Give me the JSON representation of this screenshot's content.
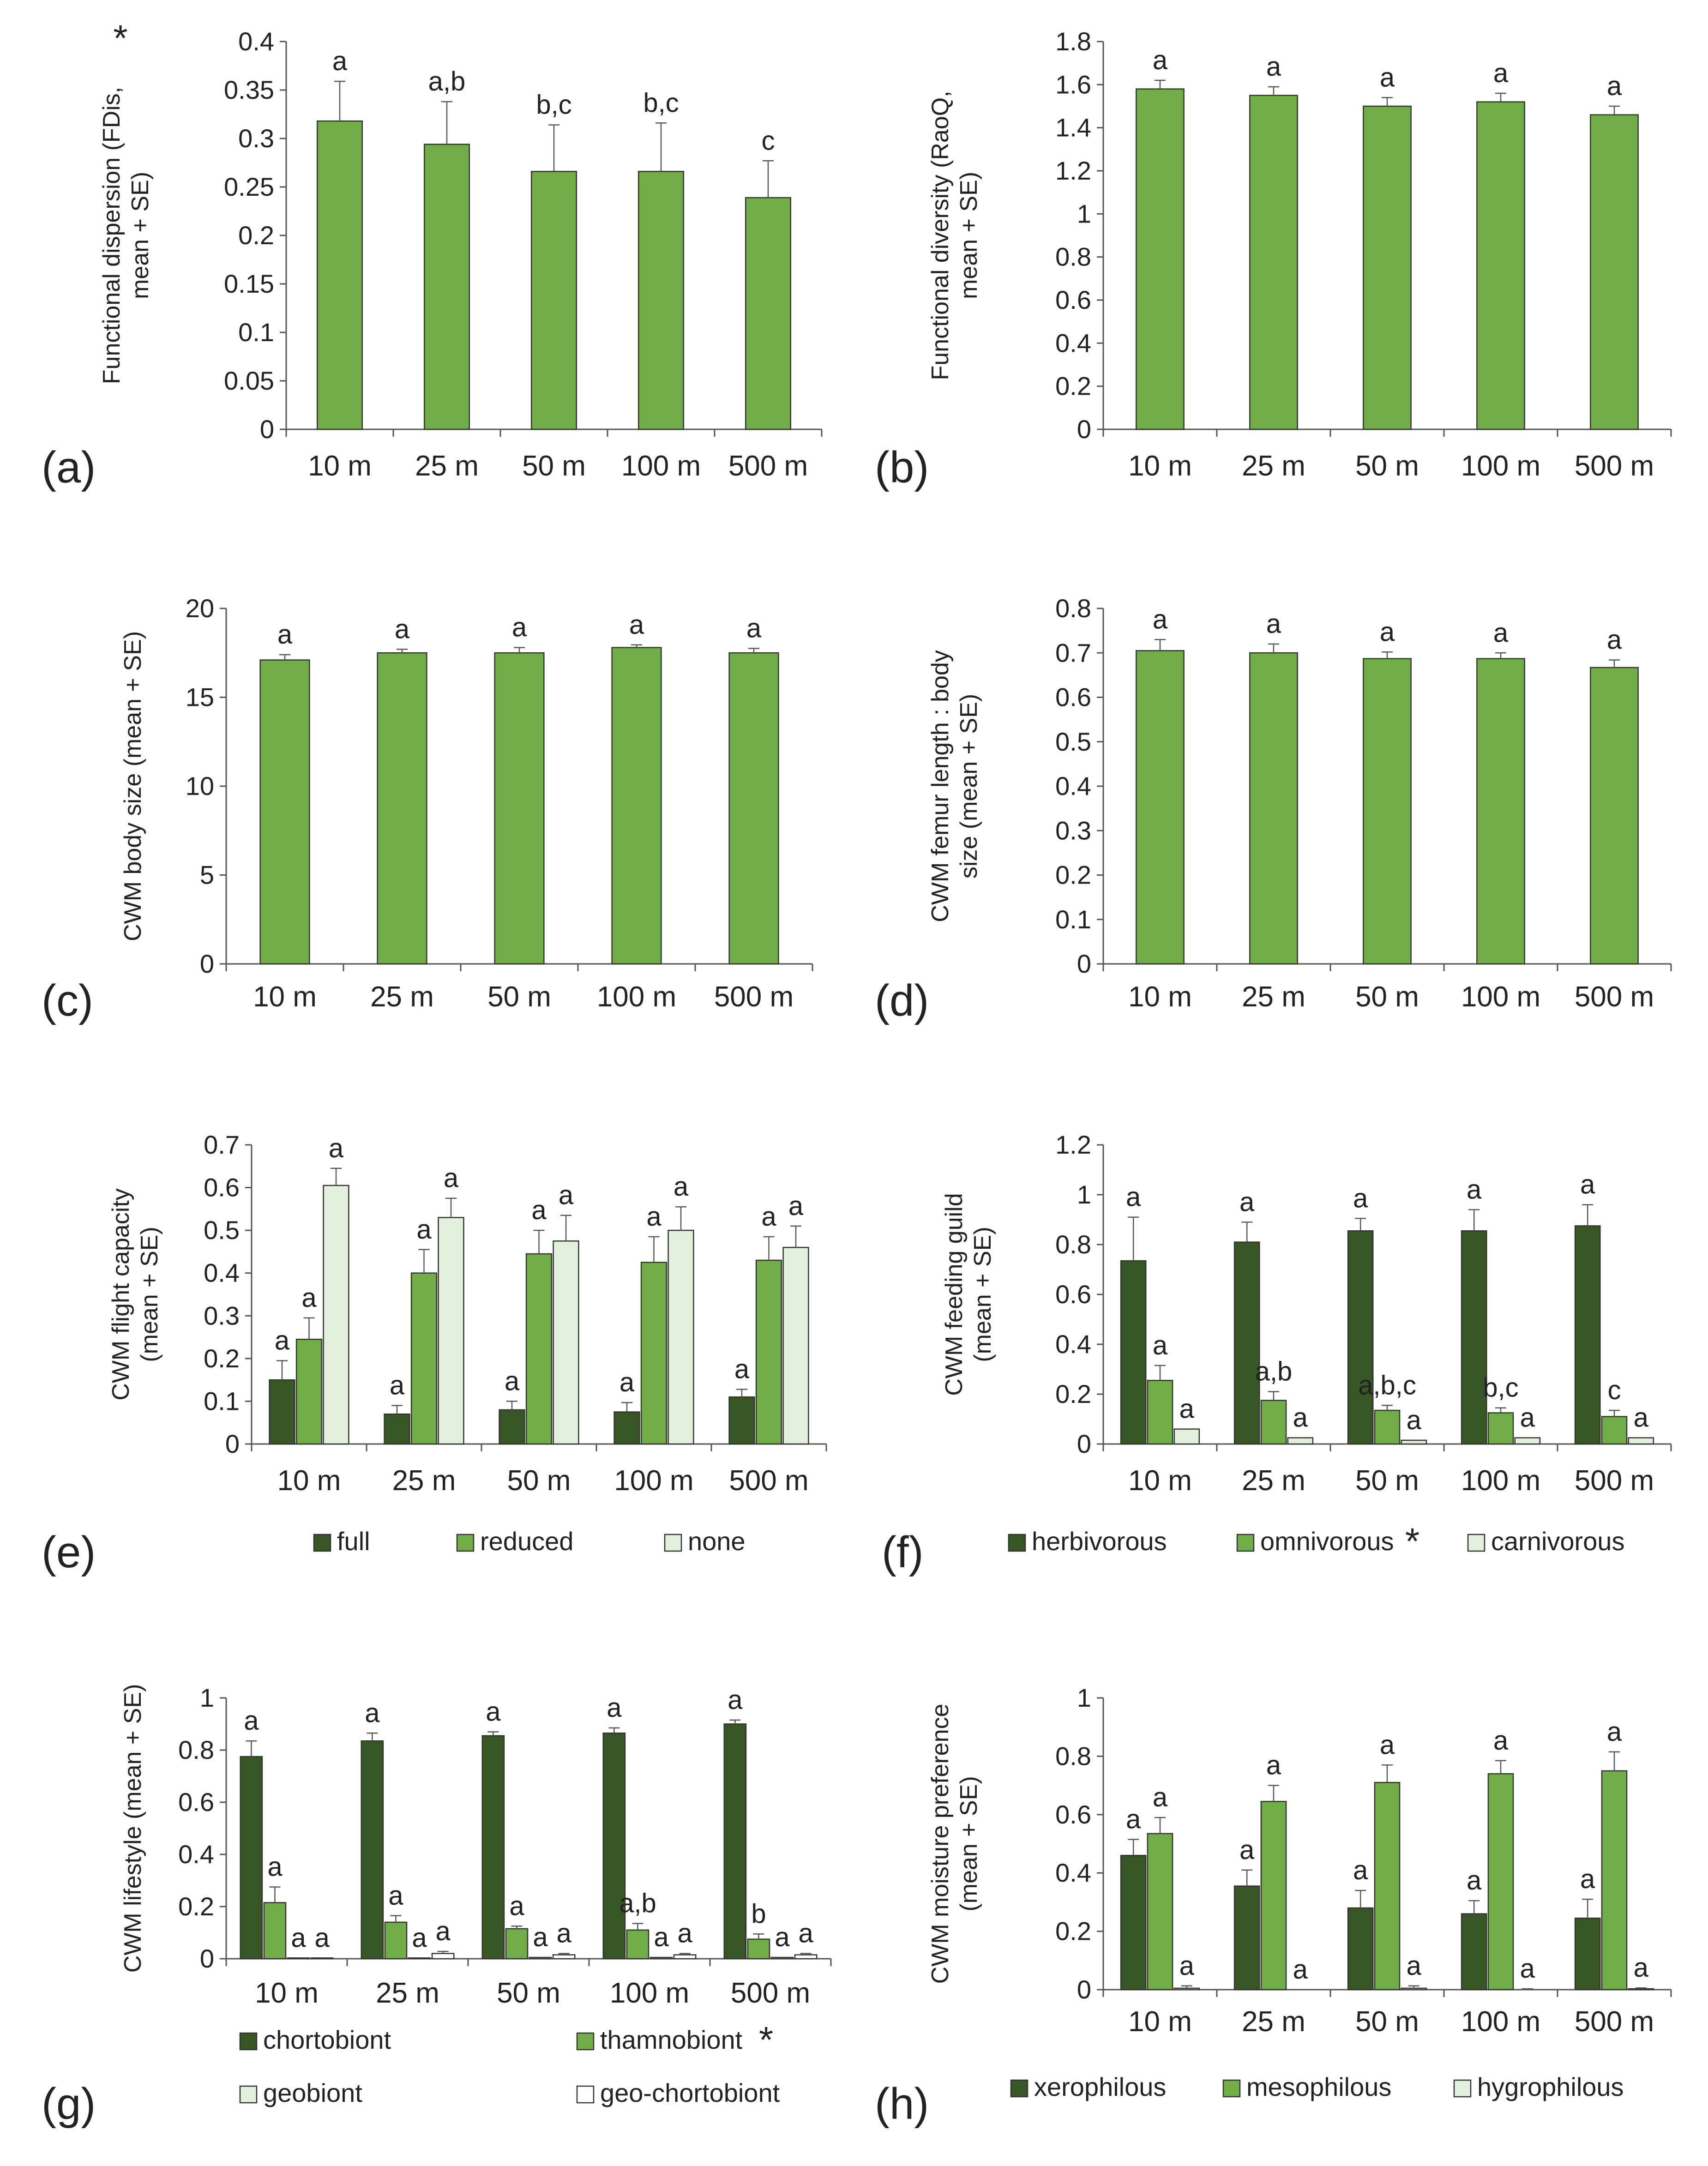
{
  "categories": [
    "10 m",
    "25 m",
    "50 m",
    "100 m",
    "500 m"
  ],
  "colors": {
    "dark": "#375623",
    "mid": "#70ad47",
    "light": "#e2efda",
    "white": "#ffffff",
    "single": "#70ad47"
  },
  "chart_data": [
    {
      "id": "a",
      "panel_label": "(a)",
      "type": "bar",
      "ylabel_lines": [
        "Functional dispersion (FDis,",
        "mean + SE)"
      ],
      "ylabel_star": "*",
      "ylim": [
        0,
        0.4
      ],
      "yticks": [
        0,
        0.05,
        0.1,
        0.15,
        0.2,
        0.25,
        0.3,
        0.35,
        0.4
      ],
      "ytick_labels": [
        "0",
        "0.05",
        "0.1",
        "0.15",
        "0.2",
        "0.25",
        "0.3",
        "0.35",
        "0.4"
      ],
      "categories": [
        "10 m",
        "25 m",
        "50 m",
        "100 m",
        "500 m"
      ],
      "series": [
        {
          "name": "",
          "color": "single",
          "values": [
            0.318,
            0.294,
            0.266,
            0.266,
            0.239
          ],
          "se": [
            0.041,
            0.044,
            0.048,
            0.05,
            0.038
          ],
          "letters": [
            "a",
            "a,b",
            "b,c",
            "b,c",
            "c"
          ]
        }
      ]
    },
    {
      "id": "b",
      "panel_label": "(b)",
      "type": "bar",
      "ylabel_lines": [
        "Functional diversity (RaoQ,",
        "mean + SE)"
      ],
      "ylim": [
        0,
        1.8
      ],
      "yticks": [
        0,
        0.2,
        0.4,
        0.6,
        0.8,
        1,
        1.2,
        1.4,
        1.6,
        1.8
      ],
      "ytick_labels": [
        "0",
        "0.2",
        "0.4",
        "0.6",
        "0.8",
        "1",
        "1.2",
        "1.4",
        "1.6",
        "1.8"
      ],
      "categories": [
        "10 m",
        "25 m",
        "50 m",
        "100 m",
        "500 m"
      ],
      "series": [
        {
          "name": "",
          "color": "single",
          "values": [
            1.58,
            1.55,
            1.5,
            1.52,
            1.46
          ],
          "se": [
            0.04,
            0.04,
            0.04,
            0.04,
            0.04
          ],
          "letters": [
            "a",
            "a",
            "a",
            "a",
            "a"
          ]
        }
      ]
    },
    {
      "id": "c",
      "panel_label": "(c)",
      "type": "bar",
      "ylabel_lines": [
        "CWM body size (mean + SE)"
      ],
      "ylim": [
        0,
        20
      ],
      "yticks": [
        0,
        5,
        10,
        15,
        20
      ],
      "ytick_labels": [
        "0",
        "5",
        "10",
        "15",
        "20"
      ],
      "categories": [
        "10 m",
        "25 m",
        "50 m",
        "100 m",
        "500 m"
      ],
      "series": [
        {
          "name": "",
          "color": "single",
          "values": [
            17.1,
            17.5,
            17.5,
            17.8,
            17.5
          ],
          "se": [
            0.3,
            0.2,
            0.3,
            0.15,
            0.25
          ],
          "letters": [
            "a",
            "a",
            "a",
            "a",
            "a"
          ]
        }
      ]
    },
    {
      "id": "d",
      "panel_label": "(d)",
      "type": "bar",
      "ylabel_lines": [
        "CWM femur length : body",
        "size (mean + SE)"
      ],
      "ylim": [
        0,
        0.8
      ],
      "yticks": [
        0,
        0.1,
        0.2,
        0.3,
        0.4,
        0.5,
        0.6,
        0.7,
        0.8
      ],
      "ytick_labels": [
        "0",
        "0.1",
        "0.2",
        "0.3",
        "0.4",
        "0.5",
        "0.6",
        "0.7",
        "0.8"
      ],
      "categories": [
        "10 m",
        "25 m",
        "50 m",
        "100 m",
        "500 m"
      ],
      "series": [
        {
          "name": "",
          "color": "single",
          "values": [
            0.705,
            0.7,
            0.687,
            0.687,
            0.667
          ],
          "se": [
            0.025,
            0.02,
            0.015,
            0.013,
            0.017
          ],
          "letters": [
            "a",
            "a",
            "a",
            "a",
            "a"
          ]
        }
      ]
    },
    {
      "id": "e",
      "panel_label": "(e)",
      "type": "bar",
      "ylabel_lines": [
        "CWM flight capacity",
        "(mean + SE)"
      ],
      "ylim": [
        0,
        0.7
      ],
      "yticks": [
        0,
        0.1,
        0.2,
        0.3,
        0.4,
        0.5,
        0.6,
        0.7
      ],
      "ytick_labels": [
        "0",
        "0.1",
        "0.2",
        "0.3",
        "0.4",
        "0.5",
        "0.6",
        "0.7"
      ],
      "categories": [
        "10 m",
        "25 m",
        "50 m",
        "100 m",
        "500 m"
      ],
      "series": [
        {
          "name": "full",
          "color": "dark",
          "values": [
            0.15,
            0.07,
            0.08,
            0.075,
            0.11
          ],
          "se": [
            0.045,
            0.02,
            0.02,
            0.022,
            0.018
          ],
          "letters": [
            "a",
            "a",
            "a",
            "a",
            "a"
          ]
        },
        {
          "name": "reduced",
          "color": "mid",
          "values": [
            0.245,
            0.4,
            0.445,
            0.425,
            0.43
          ],
          "se": [
            0.05,
            0.055,
            0.055,
            0.06,
            0.055
          ],
          "letters": [
            "a",
            "a",
            "a",
            "a",
            "a"
          ]
        },
        {
          "name": "none",
          "color": "light",
          "values": [
            0.605,
            0.53,
            0.475,
            0.5,
            0.46
          ],
          "se": [
            0.04,
            0.045,
            0.06,
            0.055,
            0.05
          ],
          "letters": [
            "a",
            "a",
            "a",
            "a",
            "a"
          ]
        }
      ],
      "legend": {
        "placement": "bottom",
        "items": [
          {
            "label": "full",
            "color": "dark"
          },
          {
            "label": "reduced",
            "color": "mid"
          },
          {
            "label": "none",
            "color": "light"
          }
        ]
      }
    },
    {
      "id": "f",
      "panel_label": "(f)",
      "type": "bar",
      "ylabel_lines": [
        "CWM feeding guild",
        "(mean + SE)"
      ],
      "ylim": [
        0,
        1.2
      ],
      "yticks": [
        0,
        0.2,
        0.4,
        0.6,
        0.8,
        1,
        1.2
      ],
      "ytick_labels": [
        "0",
        "0.2",
        "0.4",
        "0.6",
        "0.8",
        "1",
        "1.2"
      ],
      "categories": [
        "10 m",
        "25 m",
        "50 m",
        "100 m",
        "500 m"
      ],
      "series": [
        {
          "name": "herbivorous",
          "color": "dark",
          "values": [
            0.735,
            0.81,
            0.855,
            0.855,
            0.875
          ],
          "se": [
            0.175,
            0.08,
            0.05,
            0.085,
            0.085
          ],
          "letters": [
            "a",
            "a",
            "a",
            "a",
            "a"
          ]
        },
        {
          "name": "omnivorous",
          "color": "mid",
          "values": [
            0.255,
            0.175,
            0.135,
            0.125,
            0.11
          ],
          "se": [
            0.06,
            0.035,
            0.02,
            0.02,
            0.025
          ],
          "letters": [
            "a",
            "a,b",
            "a,b,c",
            "b,c",
            "c"
          ]
        },
        {
          "name": "carnivorous",
          "color": "light",
          "values": [
            0.06,
            0.025,
            0.015,
            0.025,
            0.025
          ],
          "se": [
            0.0,
            0.0,
            0.0,
            0.0,
            0.0
          ],
          "letters": [
            "a",
            "a",
            "a",
            "a",
            "a"
          ]
        }
      ],
      "legend": {
        "placement": "bottom",
        "items": [
          {
            "label": "herbivorous",
            "color": "dark"
          },
          {
            "label": "omnivorous",
            "color": "mid",
            "star": "*"
          },
          {
            "label": "carnivorous",
            "color": "light"
          }
        ]
      }
    },
    {
      "id": "g",
      "panel_label": "(g)",
      "type": "bar",
      "ylabel_lines": [
        "CWM lifestyle (mean + SE)"
      ],
      "ylim": [
        0,
        1
      ],
      "yticks": [
        0,
        0.2,
        0.4,
        0.6,
        0.8,
        1
      ],
      "ytick_labels": [
        "0",
        "0.2",
        "0.4",
        "0.6",
        "0.8",
        "1"
      ],
      "categories": [
        "10 m",
        "25 m",
        "50 m",
        "100 m",
        "500 m"
      ],
      "series": [
        {
          "name": "chortobiont",
          "color": "dark",
          "values": [
            0.775,
            0.835,
            0.855,
            0.865,
            0.9
          ],
          "se": [
            0.06,
            0.03,
            0.015,
            0.02,
            0.015
          ],
          "letters": [
            "a",
            "a",
            "a",
            "a",
            "a"
          ]
        },
        {
          "name": "thamnobiont",
          "color": "mid",
          "values": [
            0.215,
            0.14,
            0.115,
            0.11,
            0.075
          ],
          "se": [
            0.06,
            0.025,
            0.01,
            0.025,
            0.02
          ],
          "letters": [
            "a",
            "a",
            "a",
            "a,b",
            "b"
          ]
        },
        {
          "name": "geobiont",
          "color": "light",
          "values": [
            0.003,
            0.003,
            0.005,
            0.005,
            0.005
          ],
          "se": [
            0.0,
            0.0,
            0.0,
            0.0,
            0.0
          ],
          "letters": [
            "a",
            "a",
            "a",
            "a",
            "a"
          ]
        },
        {
          "name": "geo-chortobiont",
          "color": "white",
          "values": [
            0.003,
            0.02,
            0.015,
            0.015,
            0.015
          ],
          "se": [
            0.0,
            0.008,
            0.005,
            0.005,
            0.005
          ],
          "letters": [
            "a",
            "a",
            "a",
            "a",
            "a"
          ]
        }
      ],
      "legend": {
        "placement": "bottom",
        "items": [
          {
            "label": "chortobiont",
            "color": "dark"
          },
          {
            "label": "thamnobiont",
            "color": "mid",
            "star": "*"
          },
          {
            "label": "geobiont",
            "color": "light"
          },
          {
            "label": "geo-chortobiont",
            "color": "white"
          }
        ]
      }
    },
    {
      "id": "h",
      "panel_label": "(h)",
      "type": "bar",
      "ylabel_lines": [
        "CWM moisture preference",
        "(mean + SE)"
      ],
      "ylim": [
        0,
        1
      ],
      "yticks": [
        0,
        0.2,
        0.4,
        0.6,
        0.8,
        1
      ],
      "ytick_labels": [
        "0",
        "0.2",
        "0.4",
        "0.6",
        "0.8",
        "1"
      ],
      "categories": [
        "10 m",
        "25 m",
        "50 m",
        "100 m",
        "500 m"
      ],
      "series": [
        {
          "name": "xerophilous",
          "color": "dark",
          "values": [
            0.46,
            0.355,
            0.28,
            0.26,
            0.245
          ],
          "se": [
            0.055,
            0.055,
            0.06,
            0.045,
            0.065
          ],
          "letters": [
            "a",
            "a",
            "a",
            "a",
            "a"
          ]
        },
        {
          "name": "mesophilous",
          "color": "mid",
          "values": [
            0.535,
            0.645,
            0.71,
            0.74,
            0.75
          ],
          "se": [
            0.055,
            0.055,
            0.06,
            0.045,
            0.065
          ],
          "letters": [
            "a",
            "a",
            "a",
            "a",
            "a"
          ]
        },
        {
          "name": "hygrophilous",
          "color": "light",
          "values": [
            0.005,
            0.0,
            0.005,
            0.0,
            0.003
          ],
          "se": [
            0.008,
            0.0,
            0.008,
            0.003,
            0.003
          ],
          "letters": [
            "a",
            "a",
            "a",
            "a",
            "a"
          ]
        }
      ],
      "legend": {
        "placement": "bottom",
        "items": [
          {
            "label": "xerophilous",
            "color": "dark"
          },
          {
            "label": "mesophilous",
            "color": "mid"
          },
          {
            "label": "hygrophilous",
            "color": "light"
          }
        ]
      }
    }
  ]
}
